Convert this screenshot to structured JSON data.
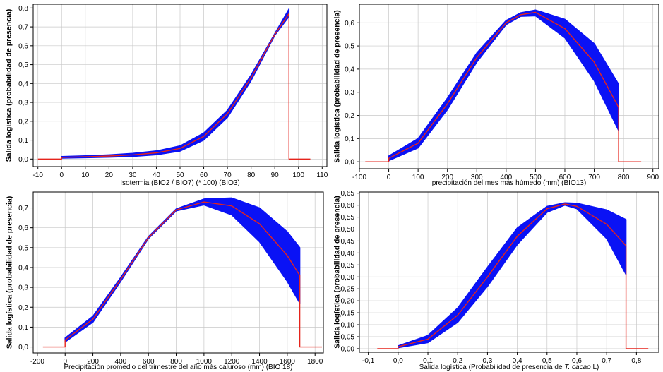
{
  "colors": {
    "band": "#0a12f5",
    "mean": "#e5241c",
    "grid": "#c8c8c8"
  },
  "chart_data": [
    {
      "id": "p1",
      "type": "line",
      "ylabel": "Salida logística (probabilidad de presencia)",
      "xlabel_parts": [
        {
          "text": "Isotermia (BIO2 / BIO7) (* 100) (BIO3)",
          "italic": false
        }
      ],
      "xlim": [
        -12,
        112
      ],
      "ylim": [
        -0.04,
        0.82
      ],
      "xticks": [
        -10,
        0,
        10,
        20,
        30,
        40,
        50,
        60,
        70,
        80,
        90,
        100,
        110
      ],
      "xtick_labels": [
        "-10",
        "0",
        "10",
        "20",
        "30",
        "40",
        "50",
        "60",
        "70",
        "80",
        "90",
        "100",
        "110"
      ],
      "yticks": [
        0.0,
        0.1,
        0.2,
        0.3,
        0.4,
        0.5,
        0.6,
        0.7,
        0.8
      ],
      "ytick_labels": [
        "0,0",
        "0,1",
        "0,2",
        "0,3",
        "0,4",
        "0,5",
        "0,6",
        "0,7",
        "0,8"
      ],
      "series": [
        {
          "role": "mean",
          "x": [
            -10,
            0,
            0,
            10,
            20,
            30,
            40,
            50,
            60,
            70,
            80,
            90,
            96,
            96,
            105
          ],
          "y": [
            0,
            0,
            0.009,
            0.012,
            0.016,
            0.022,
            0.033,
            0.056,
            0.12,
            0.24,
            0.43,
            0.66,
            0.77,
            0,
            0
          ]
        },
        {
          "role": "upper",
          "x": [
            0,
            10,
            20,
            30,
            40,
            50,
            60,
            70,
            80,
            90,
            96
          ],
          "y": [
            0.013,
            0.017,
            0.022,
            0.03,
            0.043,
            0.07,
            0.138,
            0.258,
            0.445,
            0.665,
            0.795
          ]
        },
        {
          "role": "lower",
          "x": [
            0,
            10,
            20,
            30,
            40,
            50,
            60,
            70,
            80,
            90,
            96
          ],
          "y": [
            0.005,
            0.007,
            0.01,
            0.014,
            0.023,
            0.042,
            0.1,
            0.22,
            0.415,
            0.655,
            0.755
          ]
        }
      ]
    },
    {
      "id": "p2",
      "type": "line",
      "ylabel": "Salida logística (probabilidad de presencia)",
      "xlabel_parts": [
        {
          "text": "precipitación del mes más húmedo (mm) (BIO13)",
          "italic": false
        }
      ],
      "xlim": [
        -100,
        920
      ],
      "ylim": [
        -0.03,
        0.68
      ],
      "xticks": [
        -100,
        0,
        100,
        200,
        300,
        400,
        500,
        600,
        700,
        800,
        900
      ],
      "xtick_labels": [
        "-100",
        "0",
        "100",
        "200",
        "300",
        "400",
        "500",
        "600",
        "700",
        "800",
        "900"
      ],
      "yticks": [
        0.0,
        0.1,
        0.2,
        0.3,
        0.4,
        0.5,
        0.6
      ],
      "ytick_labels": [
        "0,0",
        "0,1",
        "0,2",
        "0,3",
        "0,4",
        "0,5",
        "0,6"
      ],
      "series": [
        {
          "role": "mean",
          "x": [
            -80,
            0,
            0,
            100,
            200,
            300,
            400,
            450,
            500,
            600,
            700,
            783,
            783,
            860
          ],
          "y": [
            0,
            0,
            0.015,
            0.08,
            0.25,
            0.45,
            0.6,
            0.635,
            0.645,
            0.575,
            0.43,
            0.235,
            0,
            0
          ]
        },
        {
          "role": "upper",
          "x": [
            0,
            100,
            200,
            300,
            400,
            450,
            500,
            600,
            700,
            783
          ],
          "y": [
            0.025,
            0.1,
            0.275,
            0.47,
            0.61,
            0.643,
            0.655,
            0.615,
            0.51,
            0.335
          ]
        },
        {
          "role": "lower",
          "x": [
            0,
            100,
            200,
            300,
            400,
            450,
            500,
            600,
            700,
            783
          ],
          "y": [
            0.005,
            0.06,
            0.225,
            0.43,
            0.592,
            0.628,
            0.63,
            0.535,
            0.35,
            0.135
          ]
        }
      ]
    },
    {
      "id": "p3",
      "type": "line",
      "ylabel": "Salida logística (probabilidad de presencia)",
      "xlabel_parts": [
        {
          "text": "Precipitación promedio del trimestre  del año más caluroso (mm) (BIO 18)",
          "italic": false
        }
      ],
      "xlim": [
        -230,
        1860
      ],
      "ylim": [
        -0.03,
        0.78
      ],
      "xticks": [
        -200,
        0,
        200,
        400,
        600,
        800,
        1000,
        1200,
        1400,
        1600,
        1800
      ],
      "xtick_labels": [
        "-200",
        "0",
        "200",
        "400",
        "600",
        "800",
        "1000",
        "1200",
        "1400",
        "1600",
        "1800"
      ],
      "yticks": [
        0.0,
        0.1,
        0.2,
        0.3,
        0.4,
        0.5,
        0.6,
        0.7
      ],
      "ytick_labels": [
        "0,0",
        "0,1",
        "0,2",
        "0,3",
        "0,4",
        "0,5",
        "0,6",
        "0,7"
      ],
      "series": [
        {
          "role": "mean",
          "x": [
            -160,
            0,
            0,
            200,
            400,
            600,
            800,
            1000,
            1200,
            1400,
            1600,
            1690,
            1690,
            1850
          ],
          "y": [
            0,
            0,
            0.035,
            0.14,
            0.34,
            0.55,
            0.69,
            0.73,
            0.71,
            0.62,
            0.46,
            0.36,
            0,
            0
          ]
        },
        {
          "role": "upper",
          "x": [
            0,
            200,
            400,
            600,
            800,
            1000,
            1200,
            1400,
            1600,
            1690
          ],
          "y": [
            0.045,
            0.155,
            0.35,
            0.555,
            0.695,
            0.745,
            0.75,
            0.7,
            0.58,
            0.5
          ]
        },
        {
          "role": "lower",
          "x": [
            0,
            200,
            400,
            600,
            800,
            1000,
            1200,
            1400,
            1600,
            1690
          ],
          "y": [
            0.025,
            0.125,
            0.33,
            0.545,
            0.685,
            0.715,
            0.665,
            0.53,
            0.33,
            0.22
          ]
        }
      ]
    },
    {
      "id": "p4",
      "type": "line",
      "ylabel": "Salida logística (probabilidad de presencia)",
      "xlabel_parts": [
        {
          "text": "Salida logística (Probabilidad de presencia de ",
          "italic": false
        },
        {
          "text": "T. cacao",
          "italic": true
        },
        {
          "text": " L)",
          "italic": false
        }
      ],
      "xlim": [
        -0.13,
        0.875
      ],
      "ylim": [
        -0.015,
        0.655
      ],
      "xticks": [
        -0.1,
        0.0,
        0.1,
        0.2,
        0.3,
        0.4,
        0.5,
        0.6,
        0.7,
        0.8
      ],
      "xtick_labels": [
        "-0,1",
        "0,0",
        "0,1",
        "0,2",
        "0,3",
        "0,4",
        "0,5",
        "0,6",
        "0,7",
        "0,8"
      ],
      "yticks": [
        0.0,
        0.05,
        0.1,
        0.15,
        0.2,
        0.25,
        0.3,
        0.35,
        0.4,
        0.45,
        0.5,
        0.55,
        0.6,
        0.65
      ],
      "ytick_labels": [
        "0,00",
        "0,05",
        "0,10",
        "0,15",
        "0,20",
        "0,25",
        "0,30",
        "0,35",
        "0,40",
        "0,45",
        "0,50",
        "0,55",
        "0,60",
        "0,65"
      ],
      "series": [
        {
          "role": "mean",
          "x": [
            -0.07,
            0.0,
            0.0,
            0.1,
            0.2,
            0.3,
            0.4,
            0.5,
            0.56,
            0.6,
            0.7,
            0.765,
            0.765,
            0.84
          ],
          "y": [
            0,
            0,
            0.008,
            0.04,
            0.14,
            0.3,
            0.47,
            0.585,
            0.605,
            0.595,
            0.52,
            0.43,
            0,
            0
          ]
        },
        {
          "role": "upper",
          "x": [
            0.0,
            0.1,
            0.2,
            0.3,
            0.4,
            0.5,
            0.56,
            0.6,
            0.7,
            0.765
          ],
          "y": [
            0.012,
            0.055,
            0.17,
            0.34,
            0.505,
            0.595,
            0.61,
            0.608,
            0.58,
            0.54
          ]
        },
        {
          "role": "lower",
          "x": [
            0.0,
            0.1,
            0.2,
            0.3,
            0.4,
            0.5,
            0.56,
            0.6,
            0.7,
            0.765
          ],
          "y": [
            0.004,
            0.025,
            0.11,
            0.26,
            0.435,
            0.57,
            0.6,
            0.585,
            0.46,
            0.31
          ]
        }
      ]
    }
  ]
}
